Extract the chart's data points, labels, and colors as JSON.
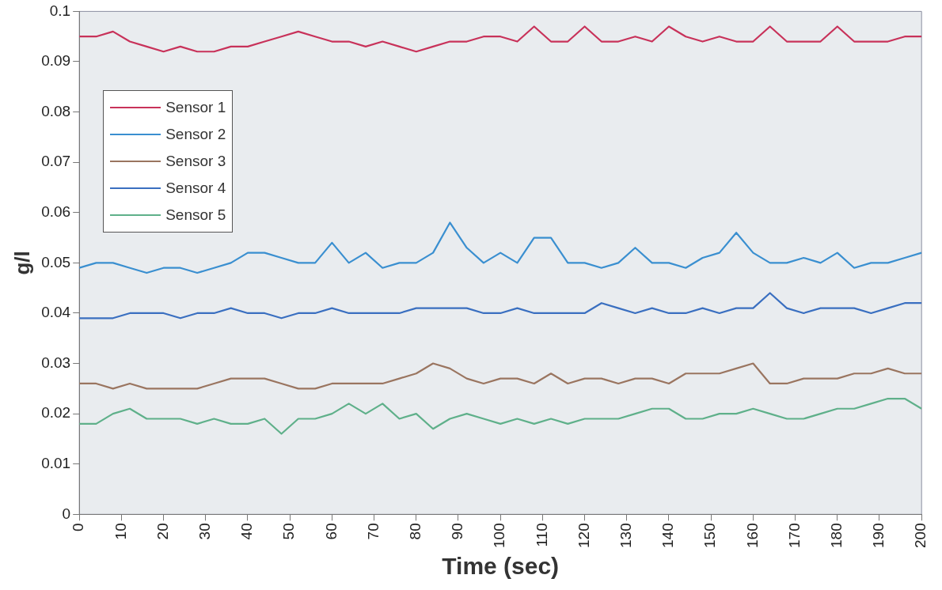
{
  "chart_data": {
    "type": "line",
    "xlabel": "Time (sec)",
    "ylabel": "g/l",
    "x": [
      0,
      4,
      8,
      12,
      16,
      20,
      24,
      28,
      32,
      36,
      40,
      44,
      48,
      52,
      56,
      60,
      64,
      68,
      72,
      76,
      80,
      84,
      88,
      92,
      96,
      100,
      104,
      108,
      112,
      116,
      120,
      124,
      128,
      132,
      136,
      140,
      144,
      148,
      152,
      156,
      160,
      164,
      168,
      172,
      176,
      180,
      184,
      188,
      192,
      196,
      200
    ],
    "xlim": [
      0,
      200
    ],
    "xticks": [
      0,
      10,
      20,
      30,
      40,
      50,
      60,
      70,
      80,
      90,
      100,
      110,
      120,
      130,
      140,
      150,
      160,
      170,
      180,
      190,
      200
    ],
    "ylim": [
      0,
      0.1
    ],
    "yticks": [
      0,
      0.01,
      0.02,
      0.03,
      0.04,
      0.05,
      0.06,
      0.07,
      0.08,
      0.09,
      0.1
    ],
    "grid": false,
    "legend": "top left",
    "marker": "none",
    "line_style": "solid",
    "series": [
      {
        "name": "Sensor 1",
        "color": "#c8325a",
        "values": [
          0.095,
          0.095,
          0.096,
          0.094,
          0.093,
          0.092,
          0.093,
          0.092,
          0.092,
          0.093,
          0.093,
          0.094,
          0.095,
          0.096,
          0.095,
          0.094,
          0.094,
          0.093,
          0.094,
          0.093,
          0.092,
          0.093,
          0.094,
          0.094,
          0.095,
          0.095,
          0.094,
          0.097,
          0.094,
          0.094,
          0.097,
          0.094,
          0.094,
          0.095,
          0.094,
          0.097,
          0.095,
          0.094,
          0.095,
          0.094,
          0.094,
          0.097,
          0.094,
          0.094,
          0.094,
          0.097,
          0.094,
          0.094,
          0.094,
          0.095,
          0.095
        ]
      },
      {
        "name": "Sensor 2",
        "color": "#3a8fd0",
        "values": [
          0.049,
          0.05,
          0.05,
          0.049,
          0.048,
          0.049,
          0.049,
          0.048,
          0.049,
          0.05,
          0.052,
          0.052,
          0.051,
          0.05,
          0.05,
          0.054,
          0.05,
          0.052,
          0.049,
          0.05,
          0.05,
          0.052,
          0.058,
          0.053,
          0.05,
          0.052,
          0.05,
          0.055,
          0.055,
          0.05,
          0.05,
          0.049,
          0.05,
          0.053,
          0.05,
          0.05,
          0.049,
          0.051,
          0.052,
          0.056,
          0.052,
          0.05,
          0.05,
          0.051,
          0.05,
          0.052,
          0.049,
          0.05,
          0.05,
          0.051,
          0.052
        ]
      },
      {
        "name": "Sensor 3",
        "color": "#9a7560",
        "values": [
          0.026,
          0.026,
          0.025,
          0.026,
          0.025,
          0.025,
          0.025,
          0.025,
          0.026,
          0.027,
          0.027,
          0.027,
          0.026,
          0.025,
          0.025,
          0.026,
          0.026,
          0.026,
          0.026,
          0.027,
          0.028,
          0.03,
          0.029,
          0.027,
          0.026,
          0.027,
          0.027,
          0.026,
          0.028,
          0.026,
          0.027,
          0.027,
          0.026,
          0.027,
          0.027,
          0.026,
          0.028,
          0.028,
          0.028,
          0.029,
          0.03,
          0.026,
          0.026,
          0.027,
          0.027,
          0.027,
          0.028,
          0.028,
          0.029,
          0.028,
          0.028
        ]
      },
      {
        "name": "Sensor 4",
        "color": "#3a6fc0",
        "values": [
          0.039,
          0.039,
          0.039,
          0.04,
          0.04,
          0.04,
          0.039,
          0.04,
          0.04,
          0.041,
          0.04,
          0.04,
          0.039,
          0.04,
          0.04,
          0.041,
          0.04,
          0.04,
          0.04,
          0.04,
          0.041,
          0.041,
          0.041,
          0.041,
          0.04,
          0.04,
          0.041,
          0.04,
          0.04,
          0.04,
          0.04,
          0.042,
          0.041,
          0.04,
          0.041,
          0.04,
          0.04,
          0.041,
          0.04,
          0.041,
          0.041,
          0.044,
          0.041,
          0.04,
          0.041,
          0.041,
          0.041,
          0.04,
          0.041,
          0.042,
          0.042
        ]
      },
      {
        "name": "Sensor 5",
        "color": "#5fb08a",
        "values": [
          0.018,
          0.018,
          0.02,
          0.021,
          0.019,
          0.019,
          0.019,
          0.018,
          0.019,
          0.018,
          0.018,
          0.019,
          0.016,
          0.019,
          0.019,
          0.02,
          0.022,
          0.02,
          0.022,
          0.019,
          0.02,
          0.017,
          0.019,
          0.02,
          0.019,
          0.018,
          0.019,
          0.018,
          0.019,
          0.018,
          0.019,
          0.019,
          0.019,
          0.02,
          0.021,
          0.021,
          0.019,
          0.019,
          0.02,
          0.02,
          0.021,
          0.02,
          0.019,
          0.019,
          0.02,
          0.021,
          0.021,
          0.022,
          0.023,
          0.023,
          0.021
        ]
      }
    ]
  }
}
